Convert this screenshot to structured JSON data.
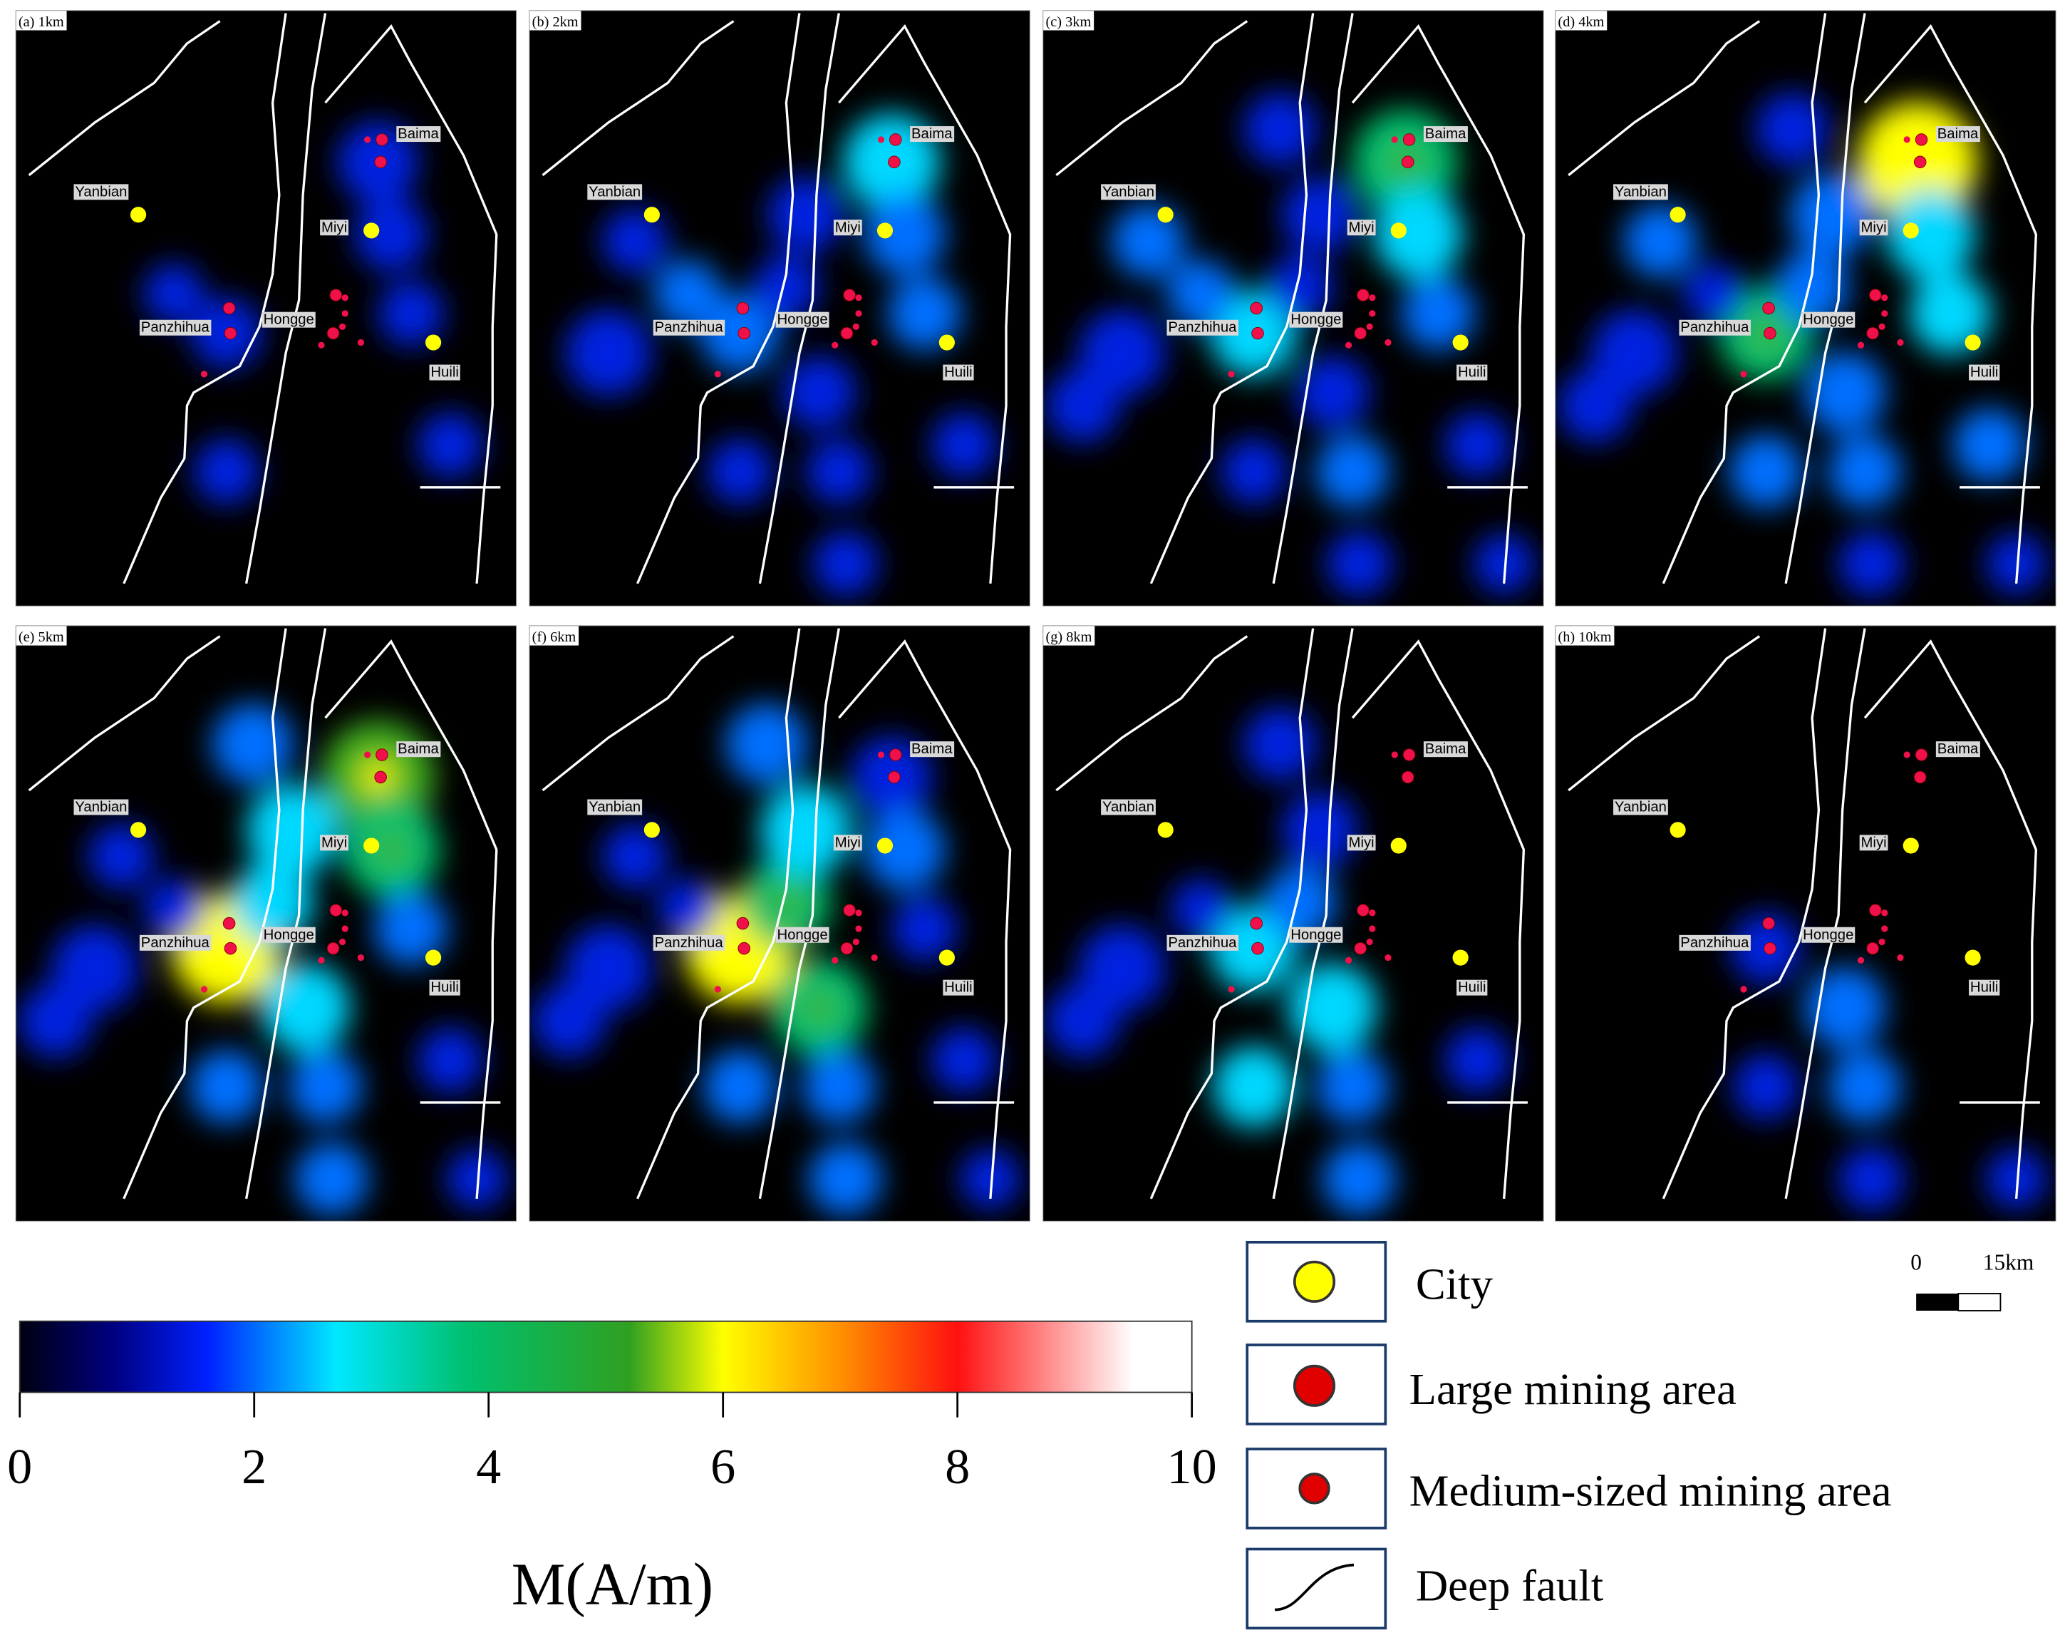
{
  "panels": [
    {
      "label": "(a) 1km"
    },
    {
      "label": "(b) 2km"
    },
    {
      "label": "(c) 3km"
    },
    {
      "label": "(d) 4km"
    },
    {
      "label": "(e) 5km"
    },
    {
      "label": "(f) 6km"
    },
    {
      "label": "(g) 8km"
    },
    {
      "label": "(h) 10km"
    }
  ],
  "places": {
    "yanbian": "Yanbian",
    "miyi": "Miyi",
    "panzhihua": "Panzhihua",
    "hongge": "Hongge",
    "baima": "Baima",
    "huili": "Huili"
  },
  "colorbar": {
    "label": "M(A/m)",
    "range": [
      0,
      10
    ],
    "ticks": [
      0,
      2,
      4,
      6,
      8,
      10
    ]
  },
  "legend": {
    "city": "City",
    "large": "Large mining area",
    "medium": "Medium-sized mining area",
    "fault": "Deep fault"
  },
  "scalebar": {
    "start": "0",
    "end": "15km"
  }
}
